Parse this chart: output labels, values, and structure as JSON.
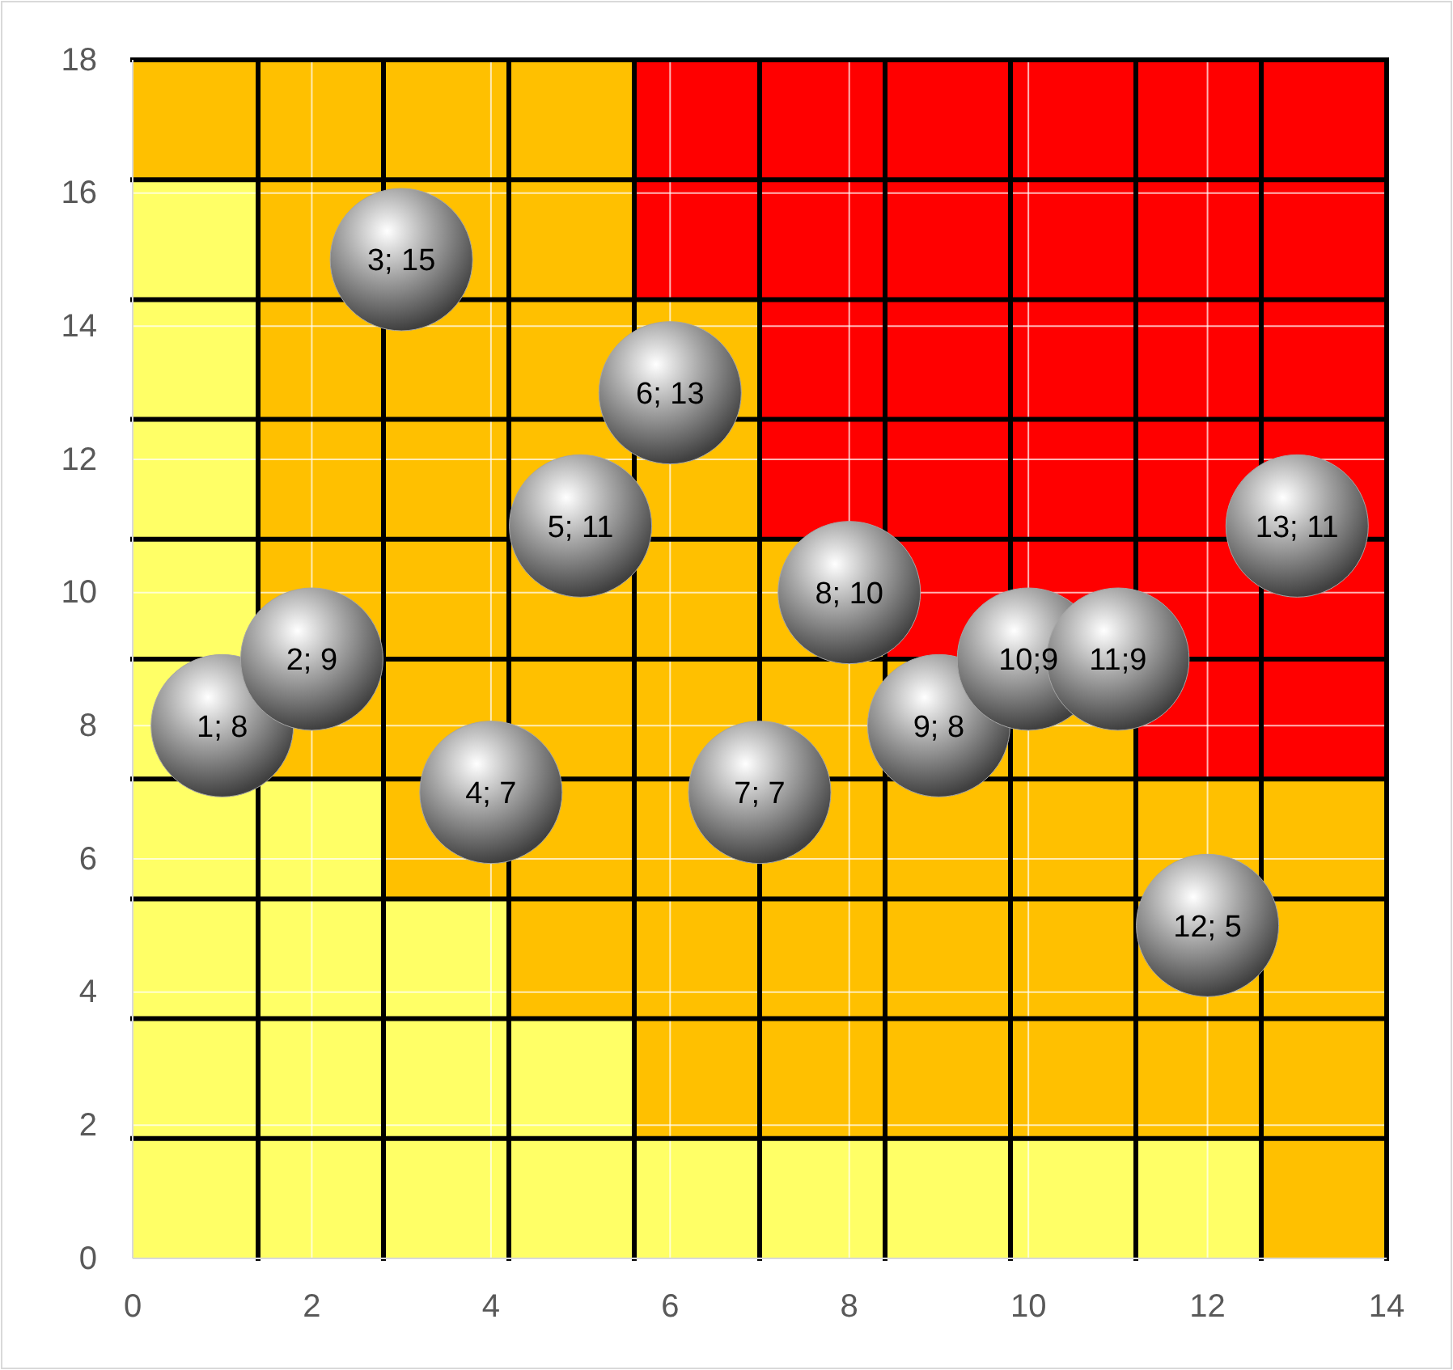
{
  "chart_data": {
    "type": "scatter",
    "x": [
      1,
      2,
      3,
      4,
      5,
      6,
      7,
      8,
      9,
      10,
      11,
      12,
      13
    ],
    "stacked": true,
    "series": [
      {
        "type": "area",
        "color": "#ffff66",
        "x": [
          0,
          1.4,
          1.4,
          2.8,
          2.8,
          4.2,
          4.2,
          5.6,
          5.6,
          7,
          7,
          8.4,
          8.4,
          9.8,
          9.8,
          11.2,
          11.2,
          12.6,
          12.6,
          14
        ],
        "values": [
          16.2,
          16.2,
          7.2,
          7.2,
          5.4,
          5.4,
          3.6,
          3.6,
          1.8,
          1.8,
          1.8,
          1.8,
          1.8,
          1.8,
          1.8,
          1.8,
          1.8,
          1.8,
          0,
          0
        ]
      },
      {
        "type": "area",
        "color": "#ffc000",
        "x": [
          0,
          1.4,
          1.4,
          2.8,
          2.8,
          4.2,
          4.2,
          5.6,
          5.6,
          7,
          7,
          8.4,
          8.4,
          9.8,
          9.8,
          11.2,
          11.2,
          12.6,
          12.6,
          14
        ],
        "values": [
          1.8,
          1.8,
          10.8,
          10.8,
          12.6,
          12.6,
          14.4,
          14.4,
          12.6,
          12.6,
          9,
          9,
          7.2,
          7.2,
          7.2,
          7.2,
          5.4,
          5.4,
          7.2,
          7.2
        ]
      },
      {
        "type": "area",
        "color": "#ff0000",
        "x": [
          0,
          1.4,
          1.4,
          2.8,
          2.8,
          4.2,
          4.2,
          5.6,
          5.6,
          7,
          7,
          8.4,
          8.4,
          9.8,
          9.8,
          11.2,
          11.2,
          12.6,
          12.6,
          14
        ],
        "values": [
          0,
          0,
          0,
          0,
          0,
          0,
          0,
          0,
          3.6,
          3.6,
          7.2,
          7.2,
          9,
          9,
          9,
          9,
          10.8,
          10.8,
          10.8,
          10.8
        ]
      },
      {
        "color": "#a6a6a6",
        "marker": "circle",
        "values": [
          8,
          9,
          15,
          7,
          11,
          13,
          7,
          10,
          8,
          9,
          9,
          5,
          11
        ],
        "value_labels": [
          "1; 8",
          "2; 9",
          "3; 15",
          "4; 7",
          "5; 11",
          "6; 13",
          "7; 7",
          "8; 10",
          "9; 8",
          "10;9",
          "11;9",
          "12; 5",
          "13; 11"
        ]
      }
    ],
    "ref_lines": [
      {
        "axis": "x",
        "value": 1.4,
        "color": "#000000"
      },
      {
        "axis": "x",
        "value": 2.8,
        "color": "#000000"
      },
      {
        "axis": "x",
        "value": 4.2,
        "color": "#000000"
      },
      {
        "axis": "x",
        "value": 5.6,
        "color": "#000000"
      },
      {
        "axis": "x",
        "value": 7,
        "color": "#000000"
      },
      {
        "axis": "x",
        "value": 8.4,
        "color": "#000000"
      },
      {
        "axis": "x",
        "value": 9.8,
        "color": "#000000"
      },
      {
        "axis": "x",
        "value": 11.2,
        "color": "#000000"
      },
      {
        "axis": "x",
        "value": 12.6,
        "color": "#000000"
      },
      {
        "axis": "x",
        "value": 14,
        "color": "#000000"
      },
      {
        "axis": "y",
        "value": 1.8,
        "color": "#000000"
      },
      {
        "axis": "y",
        "value": 3.6,
        "color": "#000000"
      },
      {
        "axis": "y",
        "value": 5.4,
        "color": "#000000"
      },
      {
        "axis": "y",
        "value": 7.2,
        "color": "#000000"
      },
      {
        "axis": "y",
        "value": 9,
        "color": "#000000"
      },
      {
        "axis": "y",
        "value": 10.8,
        "color": "#000000"
      },
      {
        "axis": "y",
        "value": 12.6,
        "color": "#000000"
      },
      {
        "axis": "y",
        "value": 14.4,
        "color": "#000000"
      },
      {
        "axis": "y",
        "value": 16.2,
        "color": "#000000"
      },
      {
        "axis": "y",
        "value": 18,
        "color": "#000000"
      }
    ],
    "xlim": [
      0,
      14
    ],
    "ylim": [
      0,
      18
    ],
    "xticks": [
      0,
      2,
      4,
      6,
      8,
      10,
      12,
      14
    ],
    "yticks": [
      0,
      2,
      4,
      6,
      8,
      10,
      12,
      14,
      16,
      18
    ],
    "grid": true
  }
}
